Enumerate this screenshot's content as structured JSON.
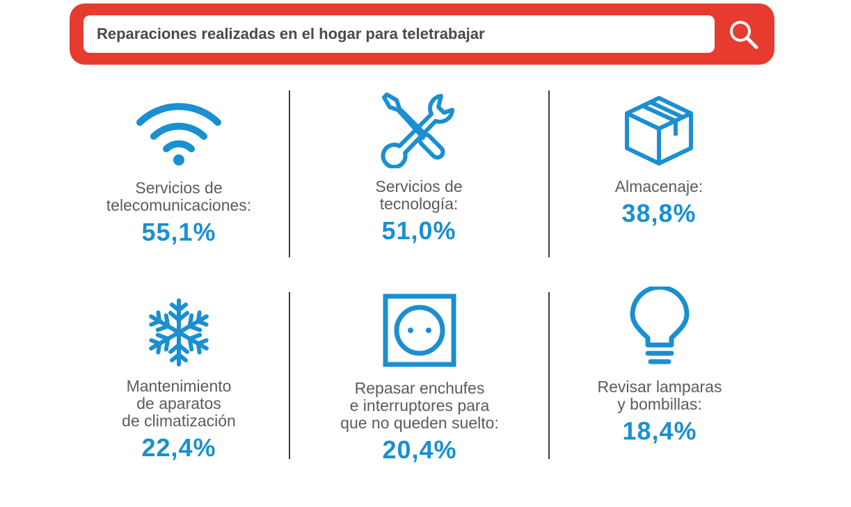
{
  "search": {
    "query": "Reparaciones realizadas en el hogar para teletrabajar"
  },
  "colors": {
    "accent_red": "#e63b2e",
    "icon_blue": "#1a8fd1",
    "text_gray": "#5b5b5b"
  },
  "items": [
    {
      "icon": "wifi-icon",
      "label": "Servicios de\ntelecomunicaciones:",
      "value": "55,1%"
    },
    {
      "icon": "tools-icon",
      "label": "Servicios de\ntecnología:",
      "value": "51,0%"
    },
    {
      "icon": "box-icon",
      "label": "Almacenaje:",
      "value": "38,8%"
    },
    {
      "icon": "snowflake-icon",
      "label": "Mantenimiento\nde aparatos\nde climatización",
      "value": "22,4%"
    },
    {
      "icon": "power-outlet-icon",
      "label": "Repasar enchufes\ne interruptores para\nque no queden suelto:",
      "value": "20,4%"
    },
    {
      "icon": "lightbulb-icon",
      "label": "Revisar lamparas\ny bombillas:",
      "value": "18,4%"
    }
  ]
}
